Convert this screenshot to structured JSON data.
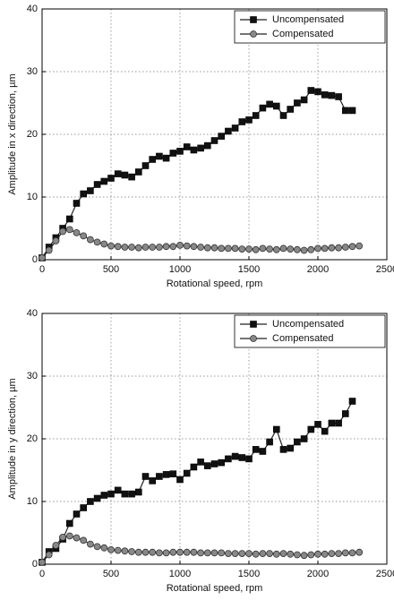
{
  "chart_data": [
    {
      "type": "line",
      "xlabel": "Rotational speed, rpm",
      "ylabel": "Amplitude in x direction, µm",
      "xlim": [
        0,
        2500
      ],
      "ylim": [
        0,
        40
      ],
      "xticks": [
        0,
        500,
        1000,
        1500,
        2000,
        2500
      ],
      "yticks": [
        0,
        10,
        20,
        30,
        40
      ],
      "grid": true,
      "legend": "upper right",
      "x": [
        0,
        50,
        100,
        150,
        200,
        250,
        300,
        350,
        400,
        450,
        500,
        550,
        600,
        650,
        700,
        750,
        800,
        850,
        900,
        950,
        1000,
        1050,
        1100,
        1150,
        1200,
        1250,
        1300,
        1350,
        1400,
        1450,
        1500,
        1550,
        1600,
        1650,
        1700,
        1750,
        1800,
        1850,
        1900,
        1950,
        2000,
        2050,
        2100,
        2150,
        2200,
        2250,
        2300
      ],
      "series": [
        {
          "name": "Uncompensated",
          "color": "#111111",
          "marker": "square",
          "values": [
            0.3,
            2,
            3.5,
            5,
            6.5,
            9,
            10.5,
            11,
            12,
            12.5,
            13,
            13.7,
            13.5,
            13.2,
            14,
            15,
            16,
            16.5,
            16.2,
            17,
            17.3,
            18,
            17.5,
            17.8,
            18.2,
            19,
            19.7,
            20.5,
            21,
            22,
            22.3,
            23,
            24.2,
            24.8,
            24.5,
            23,
            24,
            25,
            25.5,
            27,
            26.8,
            26.3,
            26.2,
            26,
            23.8,
            23.8,
            null
          ]
        },
        {
          "name": "Compensated",
          "color": "#888888",
          "marker": "circle",
          "values": [
            0.3,
            1.5,
            3,
            4.5,
            4.8,
            4.3,
            3.8,
            3.2,
            2.8,
            2.5,
            2.2,
            2.1,
            2,
            2,
            1.9,
            2,
            2,
            2,
            2.1,
            2.1,
            2.3,
            2.2,
            2.1,
            2,
            1.9,
            1.9,
            1.8,
            1.8,
            1.8,
            1.7,
            1.7,
            1.6,
            1.8,
            1.7,
            1.6,
            1.8,
            1.7,
            1.6,
            1.5,
            1.6,
            1.8,
            1.8,
            1.9,
            1.9,
            2,
            2.1,
            2.2
          ]
        }
      ]
    },
    {
      "type": "line",
      "xlabel": "Rotational speed, rpm",
      "ylabel": "Amplitude in y direction, µm",
      "xlim": [
        0,
        2500
      ],
      "ylim": [
        0,
        40
      ],
      "xticks": [
        0,
        500,
        1000,
        1500,
        2000,
        2500
      ],
      "yticks": [
        0,
        10,
        20,
        30,
        40
      ],
      "grid": true,
      "legend": "upper right",
      "x": [
        0,
        50,
        100,
        150,
        200,
        250,
        300,
        350,
        400,
        450,
        500,
        550,
        600,
        650,
        700,
        750,
        800,
        850,
        900,
        950,
        1000,
        1050,
        1100,
        1150,
        1200,
        1250,
        1300,
        1350,
        1400,
        1450,
        1500,
        1550,
        1600,
        1650,
        1700,
        1750,
        1800,
        1850,
        1900,
        1950,
        2000,
        2050,
        2100,
        2150,
        2200,
        2250,
        2300
      ],
      "series": [
        {
          "name": "Uncompensated",
          "color": "#111111",
          "marker": "square",
          "values": [
            0.3,
            2,
            2.5,
            4,
            6.5,
            8,
            9,
            10,
            10.5,
            11,
            11.2,
            11.8,
            11.2,
            11.2,
            11.5,
            14,
            13.3,
            14,
            14.3,
            14.4,
            13.5,
            14.5,
            15.5,
            16.3,
            15.7,
            16,
            16.2,
            16.8,
            17.2,
            17,
            16.8,
            18.3,
            18,
            19.5,
            21.5,
            18.3,
            18.5,
            19.5,
            20,
            21.5,
            22.3,
            21.2,
            22.5,
            22.5,
            24,
            26,
            null
          ]
        },
        {
          "name": "Compensated",
          "color": "#888888",
          "marker": "circle",
          "values": [
            0.3,
            1.5,
            3,
            4.3,
            4.5,
            4.2,
            3.8,
            3.2,
            2.8,
            2.6,
            2.3,
            2.2,
            2.1,
            2,
            1.9,
            1.9,
            1.9,
            1.8,
            1.8,
            1.9,
            1.9,
            1.9,
            1.9,
            1.8,
            1.8,
            1.8,
            1.8,
            1.7,
            1.7,
            1.7,
            1.7,
            1.6,
            1.7,
            1.7,
            1.6,
            1.7,
            1.6,
            1.5,
            1.4,
            1.5,
            1.6,
            1.6,
            1.7,
            1.7,
            1.8,
            1.8,
            1.9
          ]
        }
      ]
    }
  ]
}
